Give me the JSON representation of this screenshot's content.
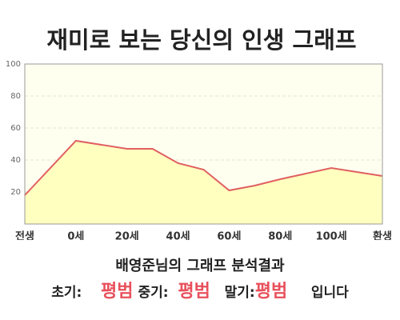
{
  "chart_data": {
    "type": "line",
    "title": "재미로 보는 당신의 인생 그래프",
    "x": [
      -20,
      0,
      20,
      30,
      40,
      50,
      60,
      70,
      80,
      100,
      120
    ],
    "values": [
      18,
      52,
      47,
      47,
      38,
      34,
      21,
      24,
      28,
      35,
      30
    ],
    "color": "#e06060",
    "fill": "#ffffc0",
    "background": "#fffff0",
    "xlim": [
      -20,
      120
    ],
    "ylim": [
      0,
      100
    ],
    "xticks": [
      {
        "value": -20,
        "label": "전생"
      },
      {
        "value": 0,
        "label": "0세"
      },
      {
        "value": 20,
        "label": "20세"
      },
      {
        "value": 40,
        "label": "40세"
      },
      {
        "value": 60,
        "label": "60세"
      },
      {
        "value": 80,
        "label": "80세"
      },
      {
        "value": 100,
        "label": "100세"
      },
      {
        "value": 120,
        "label": "환생"
      }
    ],
    "yticks": [
      20,
      40,
      60,
      80,
      100
    ],
    "grid": true
  },
  "analysis": {
    "title": "배영준님의 그래프 분석결과",
    "early_label": "초기:",
    "early": "평범",
    "middle_label": "중기:",
    "middle": "평범",
    "late_label": "말기:",
    "late": "평범",
    "ending": "입니다"
  }
}
